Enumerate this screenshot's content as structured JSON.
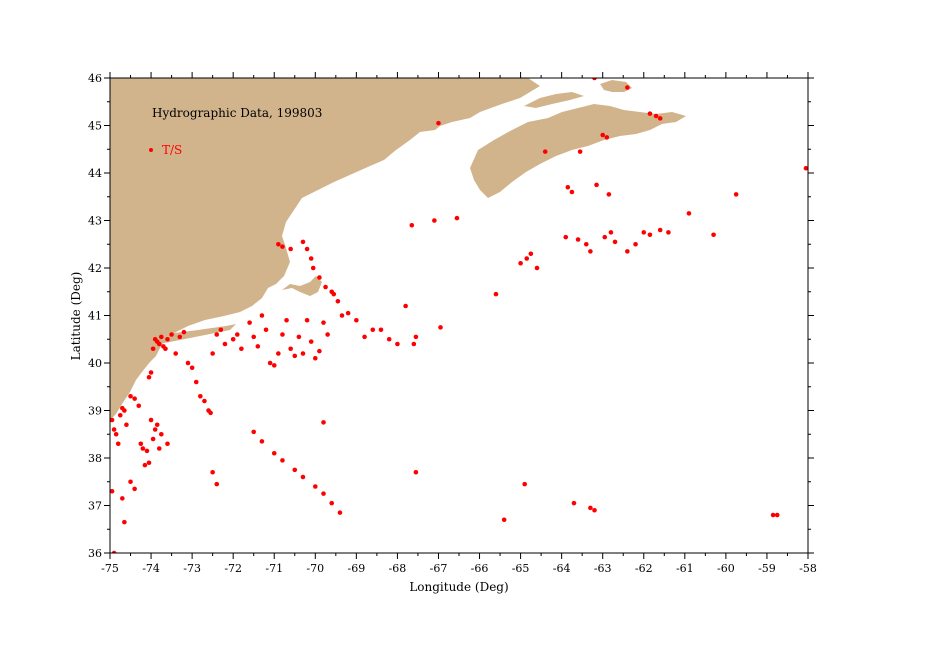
{
  "title": "Hydrographic Data, 199803",
  "legend": {
    "label": "T/S",
    "color": "#ff0000"
  },
  "colors": {
    "land": "#d2b48c",
    "station": "#ff0000",
    "axis": "#000000"
  },
  "chart_data": {
    "type": "scatter",
    "xlabel": "Longitude (Deg)",
    "ylabel": "Latitude (Deg)",
    "xlim": [
      -75,
      -58
    ],
    "ylim": [
      36,
      46
    ],
    "xticks": [
      -75,
      -74,
      -73,
      -72,
      -71,
      -70,
      -69,
      -68,
      -67,
      -66,
      -65,
      -64,
      -63,
      -62,
      -61,
      -60,
      -59,
      -58
    ],
    "yticks": [
      36,
      37,
      38,
      39,
      40,
      41,
      42,
      43,
      44,
      45,
      46
    ],
    "grid": false,
    "legend_position": "top-left",
    "series": [
      {
        "name": "T/S",
        "color": "#ff0000",
        "points": [
          [
            -74.95,
            38.8
          ],
          [
            -74.9,
            38.6
          ],
          [
            -74.85,
            38.5
          ],
          [
            -74.8,
            38.3
          ],
          [
            -74.75,
            38.9
          ],
          [
            -74.7,
            39.05
          ],
          [
            -74.65,
            39.0
          ],
          [
            -74.6,
            38.7
          ],
          [
            -74.5,
            39.3
          ],
          [
            -74.4,
            39.25
          ],
          [
            -74.3,
            39.1
          ],
          [
            -74.25,
            38.3
          ],
          [
            -74.2,
            38.2
          ],
          [
            -74.15,
            37.85
          ],
          [
            -74.1,
            38.15
          ],
          [
            -74.05,
            37.9
          ],
          [
            -74.0,
            38.8
          ],
          [
            -73.95,
            38.4
          ],
          [
            -73.9,
            38.6
          ],
          [
            -73.85,
            38.7
          ],
          [
            -73.8,
            38.2
          ],
          [
            -73.75,
            38.5
          ],
          [
            -73.6,
            38.3
          ],
          [
            -74.0,
            39.8
          ],
          [
            -74.05,
            39.7
          ],
          [
            -73.95,
            40.3
          ],
          [
            -73.9,
            40.5
          ],
          [
            -73.85,
            40.45
          ],
          [
            -73.8,
            40.4
          ],
          [
            -73.75,
            40.55
          ],
          [
            -73.7,
            40.35
          ],
          [
            -73.65,
            40.3
          ],
          [
            -73.6,
            40.5
          ],
          [
            -73.5,
            40.6
          ],
          [
            -73.4,
            40.2
          ],
          [
            -73.3,
            40.55
          ],
          [
            -73.2,
            40.65
          ],
          [
            -73.1,
            40.0
          ],
          [
            -73.0,
            39.9
          ],
          [
            -72.9,
            39.6
          ],
          [
            -72.8,
            39.3
          ],
          [
            -72.7,
            39.2
          ],
          [
            -72.6,
            39.0
          ],
          [
            -72.55,
            38.95
          ],
          [
            -72.5,
            40.2
          ],
          [
            -72.4,
            40.6
          ],
          [
            -72.3,
            40.7
          ],
          [
            -72.2,
            40.4
          ],
          [
            -72.0,
            40.5
          ],
          [
            -71.9,
            40.6
          ],
          [
            -71.8,
            40.3
          ],
          [
            -71.6,
            40.85
          ],
          [
            -71.5,
            40.55
          ],
          [
            -71.4,
            40.35
          ],
          [
            -71.3,
            41.0
          ],
          [
            -71.2,
            40.7
          ],
          [
            -71.1,
            40.0
          ],
          [
            -71.0,
            39.95
          ],
          [
            -70.9,
            40.2
          ],
          [
            -70.8,
            40.6
          ],
          [
            -70.7,
            40.9
          ],
          [
            -70.6,
            40.3
          ],
          [
            -70.5,
            40.15
          ],
          [
            -70.4,
            40.55
          ],
          [
            -70.3,
            40.2
          ],
          [
            -70.2,
            40.9
          ],
          [
            -70.1,
            40.45
          ],
          [
            -70.0,
            40.1
          ],
          [
            -69.9,
            40.25
          ],
          [
            -69.8,
            40.85
          ],
          [
            -69.7,
            40.6
          ],
          [
            -69.55,
            41.45
          ],
          [
            -69.45,
            41.3
          ],
          [
            -69.35,
            41.0
          ],
          [
            -69.2,
            41.05
          ],
          [
            -69.0,
            40.9
          ],
          [
            -68.8,
            40.55
          ],
          [
            -68.6,
            40.7
          ],
          [
            -68.4,
            40.7
          ],
          [
            -68.2,
            40.5
          ],
          [
            -68.0,
            40.4
          ],
          [
            -67.8,
            41.2
          ],
          [
            -67.6,
            40.4
          ],
          [
            -67.55,
            40.55
          ],
          [
            -70.9,
            42.5
          ],
          [
            -70.8,
            42.45
          ],
          [
            -70.6,
            42.4
          ],
          [
            -70.3,
            42.55
          ],
          [
            -70.2,
            42.4
          ],
          [
            -70.1,
            42.2
          ],
          [
            -70.05,
            42.0
          ],
          [
            -69.9,
            41.8
          ],
          [
            -69.75,
            41.6
          ],
          [
            -69.6,
            41.5
          ],
          [
            -67.65,
            42.9
          ],
          [
            -67.1,
            43.0
          ],
          [
            -66.55,
            43.05
          ],
          [
            -66.95,
            40.75
          ],
          [
            -65.6,
            41.45
          ],
          [
            -65.0,
            42.1
          ],
          [
            -64.85,
            42.2
          ],
          [
            -64.75,
            42.3
          ],
          [
            -64.6,
            42.0
          ],
          [
            -63.9,
            42.65
          ],
          [
            -63.6,
            42.6
          ],
          [
            -63.4,
            42.5
          ],
          [
            -63.3,
            42.35
          ],
          [
            -62.95,
            42.65
          ],
          [
            -62.8,
            42.75
          ],
          [
            -62.7,
            42.55
          ],
          [
            -62.4,
            42.35
          ],
          [
            -62.2,
            42.5
          ],
          [
            -62.0,
            42.75
          ],
          [
            -61.85,
            42.7
          ],
          [
            -61.6,
            42.8
          ],
          [
            -61.4,
            42.75
          ],
          [
            -60.9,
            43.15
          ],
          [
            -60.3,
            42.7
          ],
          [
            -59.75,
            43.55
          ],
          [
            -63.85,
            43.7
          ],
          [
            -63.75,
            43.6
          ],
          [
            -63.15,
            43.75
          ],
          [
            -62.85,
            43.55
          ],
          [
            -58.05,
            44.1
          ],
          [
            -64.4,
            44.45
          ],
          [
            -63.55,
            44.45
          ],
          [
            -63.0,
            44.8
          ],
          [
            -62.9,
            44.75
          ],
          [
            -61.85,
            45.25
          ],
          [
            -61.7,
            45.2
          ],
          [
            -61.6,
            45.15
          ],
          [
            -62.4,
            45.8
          ],
          [
            -67.0,
            45.05
          ],
          [
            -63.2,
            46.0
          ],
          [
            -71.5,
            38.55
          ],
          [
            -71.3,
            38.35
          ],
          [
            -71.0,
            38.1
          ],
          [
            -70.8,
            37.95
          ],
          [
            -70.5,
            37.75
          ],
          [
            -70.3,
            37.6
          ],
          [
            -70.0,
            37.4
          ],
          [
            -69.8,
            37.25
          ],
          [
            -69.6,
            37.05
          ],
          [
            -69.4,
            36.85
          ],
          [
            -72.5,
            37.7
          ],
          [
            -72.4,
            37.45
          ],
          [
            -69.8,
            38.75
          ],
          [
            -67.55,
            37.7
          ],
          [
            -65.4,
            36.7
          ],
          [
            -64.9,
            37.45
          ],
          [
            -63.7,
            37.05
          ],
          [
            -63.3,
            36.95
          ],
          [
            -63.2,
            36.9
          ],
          [
            -58.85,
            36.8
          ],
          [
            -58.75,
            36.8
          ],
          [
            -74.7,
            37.15
          ],
          [
            -74.65,
            36.65
          ],
          [
            -74.9,
            36.0
          ],
          [
            -74.95,
            37.3
          ],
          [
            -74.4,
            37.35
          ],
          [
            -74.5,
            37.5
          ]
        ]
      }
    ]
  }
}
